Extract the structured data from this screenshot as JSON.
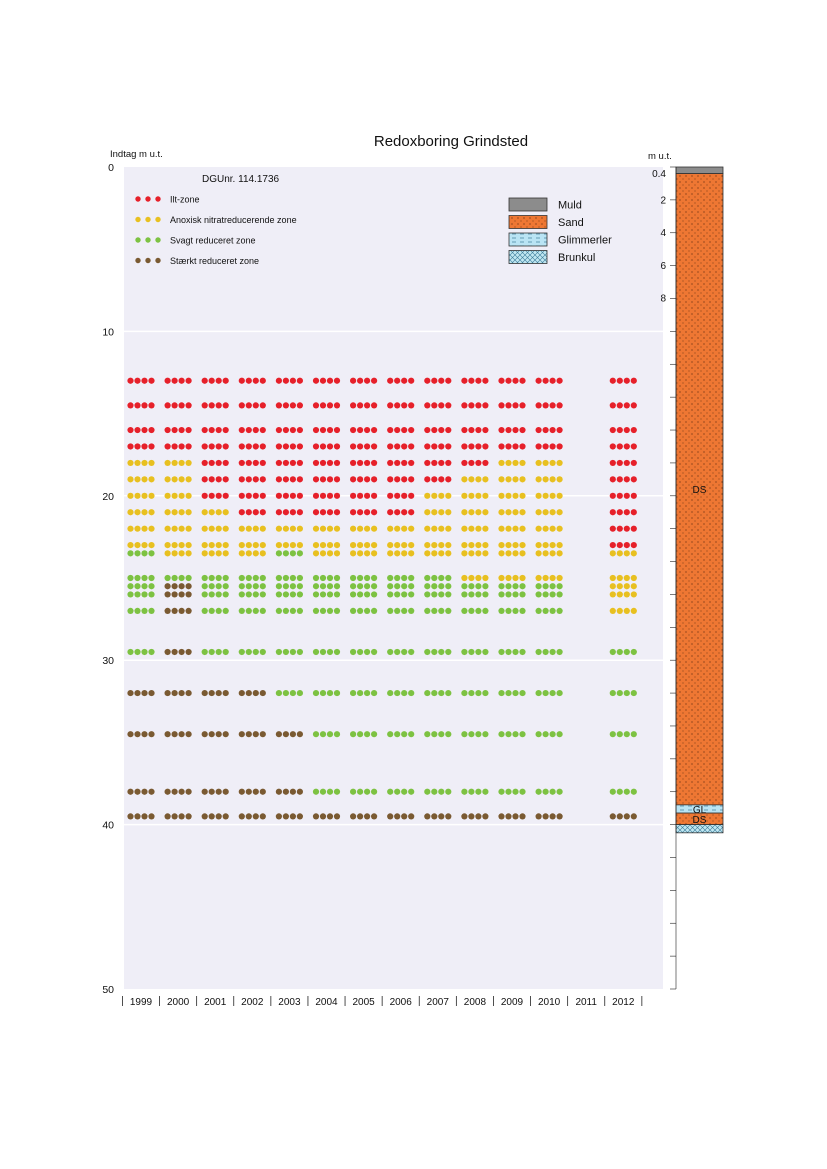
{
  "chart_data": {
    "type": "scatter",
    "title": "Redoxboring Grindsted",
    "ylabel": "Indtag m u.t.",
    "well_id": "DGUnr. 114.1736",
    "ylim": [
      0,
      50
    ],
    "y_inverted": true,
    "y_ticks": [
      "0",
      "10",
      "20",
      "30",
      "40",
      "50"
    ],
    "x_categories": [
      "1999",
      "2000",
      "2001",
      "2002",
      "2003",
      "2004",
      "2005",
      "2006",
      "2007",
      "2008",
      "2009",
      "2010",
      "2011",
      "2012"
    ],
    "grid": "horizontal",
    "legend_position": "top-left",
    "colors": {
      "ilt": "#e6202a",
      "anox": "#e8c020",
      "svagt": "#7dc242",
      "staerkt": "#7a5a32",
      "plot_bg": "#efeef7"
    },
    "series": [
      {
        "key": "ilt",
        "name": "Ilt-zone"
      },
      {
        "key": "anox",
        "name": "Anoxisk nitratreducerende zone"
      },
      {
        "key": "svagt",
        "name": "Svagt reduceret zone"
      },
      {
        "key": "staerkt",
        "name": "Stærkt reduceret zone"
      }
    ],
    "sampling_depths": [
      13,
      14.5,
      16,
      17,
      18,
      19,
      20,
      21,
      22,
      23,
      23.5,
      25,
      25.5,
      26,
      27,
      29.5,
      32,
      34.5,
      38,
      39.5
    ],
    "zone_boundaries_by_year": [
      {
        "year": "1999",
        "ilt_to": 17.5,
        "anox_to": 23.3,
        "svagt_to": 31
      },
      {
        "year": "2000",
        "ilt_to": 17.5,
        "anox_to": 24.8,
        "svagt_to": 25.2
      },
      {
        "year": "2001",
        "ilt_to": 20.5,
        "anox_to": 24.8,
        "svagt_to": 31
      },
      {
        "year": "2002",
        "ilt_to": 21.5,
        "anox_to": 24.8,
        "svagt_to": 31
      },
      {
        "year": "2003",
        "ilt_to": 21.5,
        "anox_to": 23.3,
        "svagt_to": 32.5
      },
      {
        "year": "2004",
        "ilt_to": 21.5,
        "anox_to": 24.8,
        "svagt_to": 39
      },
      {
        "year": "2005",
        "ilt_to": 21.5,
        "anox_to": 24.8,
        "svagt_to": 39
      },
      {
        "year": "2006",
        "ilt_to": 21.5,
        "anox_to": 24.8,
        "svagt_to": 39
      },
      {
        "year": "2007",
        "ilt_to": 19.5,
        "anox_to": 24.8,
        "svagt_to": 39
      },
      {
        "year": "2008",
        "ilt_to": 18.5,
        "anox_to": 25.2,
        "svagt_to": 39
      },
      {
        "year": "2009",
        "ilt_to": 17.5,
        "anox_to": 25.2,
        "svagt_to": 39
      },
      {
        "year": "2010",
        "ilt_to": 17.5,
        "anox_to": 25.2,
        "svagt_to": 39
      },
      {
        "year": "2012",
        "ilt_to": 23.3,
        "anox_to": 27.5,
        "svagt_to": 39
      }
    ]
  },
  "lithology": {
    "label": "m u.t.",
    "ticks": [
      "0.4",
      "2",
      "4",
      "6",
      "8"
    ],
    "legend": [
      {
        "key": "muld",
        "name": "Muld",
        "color": "#8c8c8c"
      },
      {
        "key": "sand",
        "name": "Sand",
        "color": "#ee7733"
      },
      {
        "key": "glimmer",
        "name": "Glimmerler",
        "color": "#b9e4f4"
      },
      {
        "key": "brunkul",
        "name": "Brunkul",
        "color": "#bfe6f0"
      }
    ],
    "layers": [
      {
        "code": "",
        "from": 0,
        "to": 0.4,
        "type": "muld"
      },
      {
        "code": "DS",
        "from": 0.4,
        "to": 38.8,
        "type": "sand"
      },
      {
        "code": "GL",
        "from": 38.8,
        "to": 39.3,
        "type": "glimmer"
      },
      {
        "code": "DS",
        "from": 39.3,
        "to": 40,
        "type": "sand"
      },
      {
        "code": "",
        "from": 40,
        "to": 40.5,
        "type": "brunkul"
      }
    ]
  }
}
